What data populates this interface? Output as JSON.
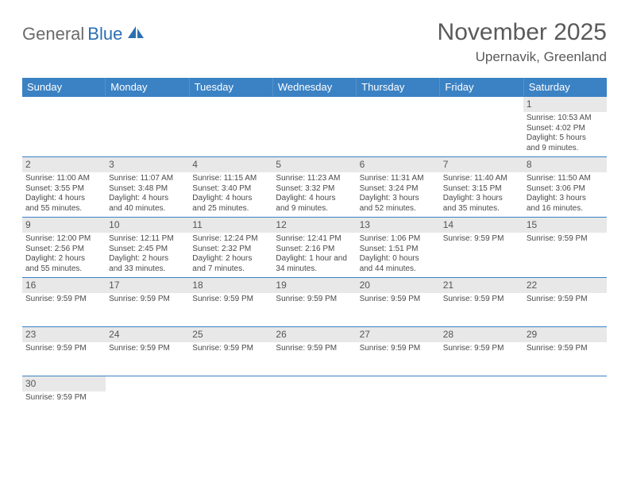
{
  "logo": {
    "text_gray": "General",
    "text_blue": "Blue"
  },
  "title": "November 2025",
  "location": "Upernavik, Greenland",
  "colors": {
    "header_bar": "#3b82c4",
    "daynum_bg": "#e8e8e8",
    "text_gray": "#5a5a5a",
    "logo_blue": "#2b6fb0",
    "week_border": "#3b82c4"
  },
  "weekdays": [
    "Sunday",
    "Monday",
    "Tuesday",
    "Wednesday",
    "Thursday",
    "Friday",
    "Saturday"
  ],
  "weeks": [
    [
      {
        "num": "",
        "lines": []
      },
      {
        "num": "",
        "lines": []
      },
      {
        "num": "",
        "lines": []
      },
      {
        "num": "",
        "lines": []
      },
      {
        "num": "",
        "lines": []
      },
      {
        "num": "",
        "lines": []
      },
      {
        "num": "1",
        "lines": [
          "Sunrise: 10:53 AM",
          "Sunset: 4:02 PM",
          "Daylight: 5 hours",
          "and 9 minutes."
        ]
      }
    ],
    [
      {
        "num": "2",
        "lines": [
          "Sunrise: 11:00 AM",
          "Sunset: 3:55 PM",
          "Daylight: 4 hours",
          "and 55 minutes."
        ]
      },
      {
        "num": "3",
        "lines": [
          "Sunrise: 11:07 AM",
          "Sunset: 3:48 PM",
          "Daylight: 4 hours",
          "and 40 minutes."
        ]
      },
      {
        "num": "4",
        "lines": [
          "Sunrise: 11:15 AM",
          "Sunset: 3:40 PM",
          "Daylight: 4 hours",
          "and 25 minutes."
        ]
      },
      {
        "num": "5",
        "lines": [
          "Sunrise: 11:23 AM",
          "Sunset: 3:32 PM",
          "Daylight: 4 hours",
          "and 9 minutes."
        ]
      },
      {
        "num": "6",
        "lines": [
          "Sunrise: 11:31 AM",
          "Sunset: 3:24 PM",
          "Daylight: 3 hours",
          "and 52 minutes."
        ]
      },
      {
        "num": "7",
        "lines": [
          "Sunrise: 11:40 AM",
          "Sunset: 3:15 PM",
          "Daylight: 3 hours",
          "and 35 minutes."
        ]
      },
      {
        "num": "8",
        "lines": [
          "Sunrise: 11:50 AM",
          "Sunset: 3:06 PM",
          "Daylight: 3 hours",
          "and 16 minutes."
        ]
      }
    ],
    [
      {
        "num": "9",
        "lines": [
          "Sunrise: 12:00 PM",
          "Sunset: 2:56 PM",
          "Daylight: 2 hours",
          "and 55 minutes."
        ]
      },
      {
        "num": "10",
        "lines": [
          "Sunrise: 12:11 PM",
          "Sunset: 2:45 PM",
          "Daylight: 2 hours",
          "and 33 minutes."
        ]
      },
      {
        "num": "11",
        "lines": [
          "Sunrise: 12:24 PM",
          "Sunset: 2:32 PM",
          "Daylight: 2 hours",
          "and 7 minutes."
        ]
      },
      {
        "num": "12",
        "lines": [
          "Sunrise: 12:41 PM",
          "Sunset: 2:16 PM",
          "Daylight: 1 hour and",
          "34 minutes."
        ]
      },
      {
        "num": "13",
        "lines": [
          "Sunrise: 1:06 PM",
          "Sunset: 1:51 PM",
          "Daylight: 0 hours",
          "and 44 minutes."
        ]
      },
      {
        "num": "14",
        "lines": [
          "Sunrise: 9:59 PM"
        ]
      },
      {
        "num": "15",
        "lines": [
          "Sunrise: 9:59 PM"
        ]
      }
    ],
    [
      {
        "num": "16",
        "lines": [
          "Sunrise: 9:59 PM"
        ]
      },
      {
        "num": "17",
        "lines": [
          "Sunrise: 9:59 PM"
        ]
      },
      {
        "num": "18",
        "lines": [
          "Sunrise: 9:59 PM"
        ]
      },
      {
        "num": "19",
        "lines": [
          "Sunrise: 9:59 PM"
        ]
      },
      {
        "num": "20",
        "lines": [
          "Sunrise: 9:59 PM"
        ]
      },
      {
        "num": "21",
        "lines": [
          "Sunrise: 9:59 PM"
        ]
      },
      {
        "num": "22",
        "lines": [
          "Sunrise: 9:59 PM"
        ]
      }
    ],
    [
      {
        "num": "23",
        "lines": [
          "Sunrise: 9:59 PM"
        ]
      },
      {
        "num": "24",
        "lines": [
          "Sunrise: 9:59 PM"
        ]
      },
      {
        "num": "25",
        "lines": [
          "Sunrise: 9:59 PM"
        ]
      },
      {
        "num": "26",
        "lines": [
          "Sunrise: 9:59 PM"
        ]
      },
      {
        "num": "27",
        "lines": [
          "Sunrise: 9:59 PM"
        ]
      },
      {
        "num": "28",
        "lines": [
          "Sunrise: 9:59 PM"
        ]
      },
      {
        "num": "29",
        "lines": [
          "Sunrise: 9:59 PM"
        ]
      }
    ],
    [
      {
        "num": "30",
        "lines": [
          "Sunrise: 9:59 PM"
        ]
      },
      {
        "num": "",
        "lines": []
      },
      {
        "num": "",
        "lines": []
      },
      {
        "num": "",
        "lines": []
      },
      {
        "num": "",
        "lines": []
      },
      {
        "num": "",
        "lines": []
      },
      {
        "num": "",
        "lines": []
      }
    ]
  ]
}
